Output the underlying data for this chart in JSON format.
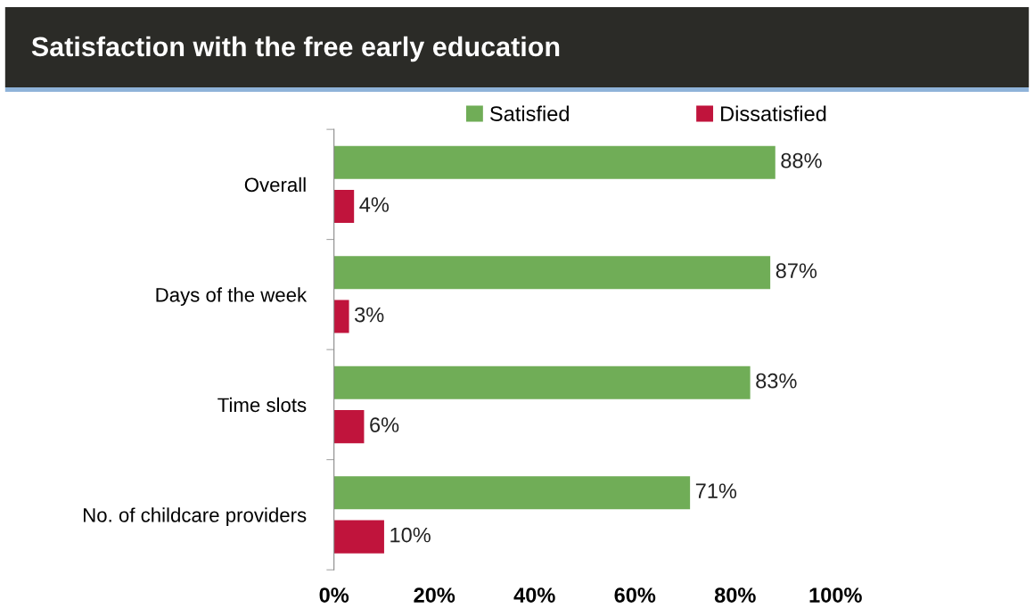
{
  "chart_data": {
    "type": "bar",
    "orientation": "horizontal",
    "title": "Satisfaction with the free early education",
    "categories": [
      "Overall",
      "Days of the week",
      "Time slots",
      "No. of childcare providers"
    ],
    "series": [
      {
        "name": "Satisfied",
        "color": "#70ad57",
        "values": [
          88,
          87,
          83,
          71
        ],
        "value_labels": [
          "88%",
          "87%",
          "83%",
          "71%"
        ]
      },
      {
        "name": "Dissatisfied",
        "color": "#c0143c",
        "values": [
          4,
          3,
          6,
          10
        ],
        "value_labels": [
          "4%",
          "3%",
          "6%",
          "10%"
        ]
      }
    ],
    "xlim": [
      0,
      100
    ],
    "xticks": [
      {
        "value": 0,
        "label": "0%"
      },
      {
        "value": 20,
        "label": "20%"
      },
      {
        "value": 40,
        "label": "40%"
      },
      {
        "value": 60,
        "label": "60%"
      },
      {
        "value": 80,
        "label": "80%"
      },
      {
        "value": 100,
        "label": "100%"
      }
    ],
    "legend": "top right",
    "grid": false
  }
}
